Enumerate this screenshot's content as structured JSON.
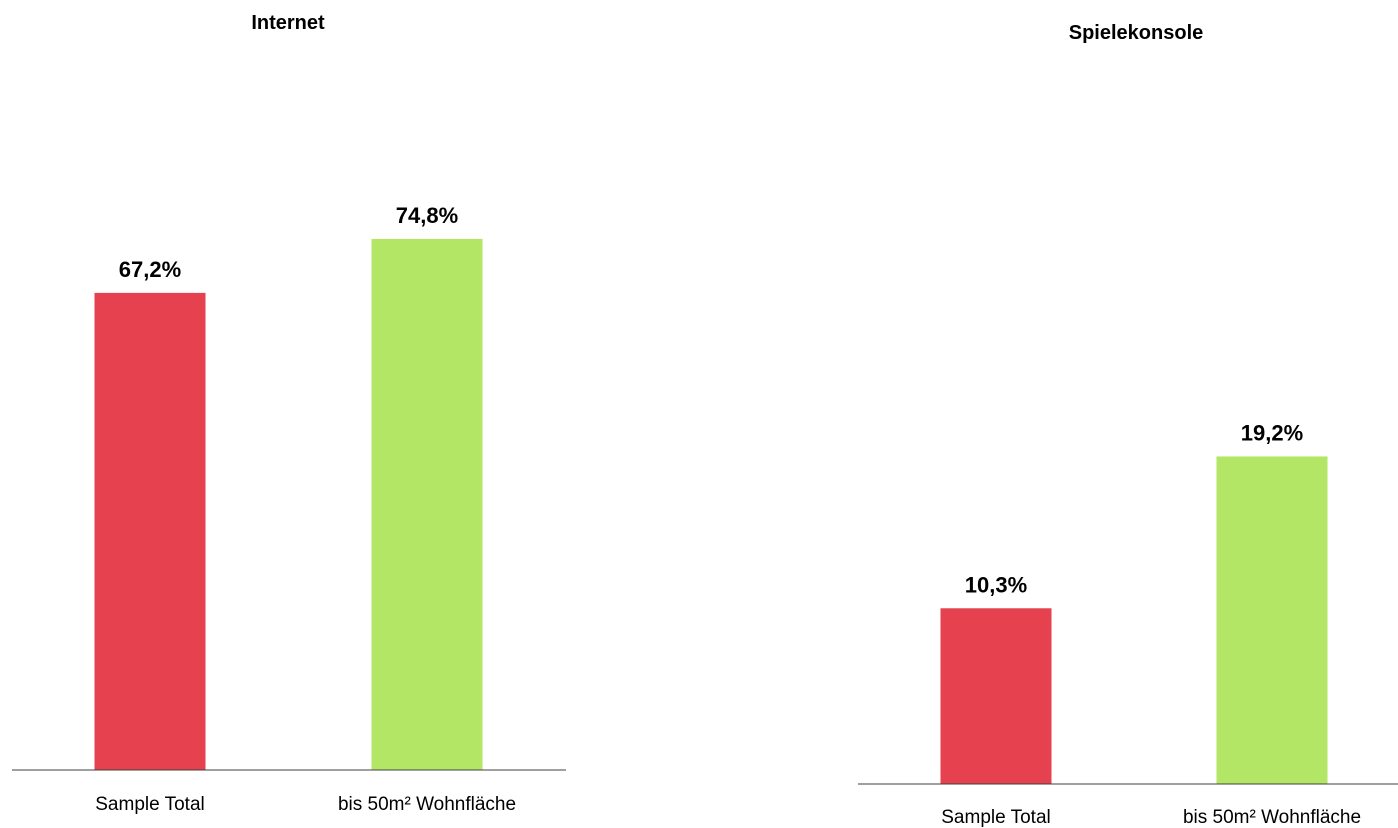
{
  "colors": {
    "sample_total": "#e5414f",
    "bis_50m2": "#b3e665",
    "axis": "#404040"
  },
  "chart_data": [
    {
      "type": "bar",
      "title": "Internet",
      "categories": [
        "Sample Total",
        "bis 50m² Wohnfläche"
      ],
      "values": [
        67.2,
        74.8
      ],
      "value_labels": [
        "67,2%",
        "74,8%"
      ],
      "unit": "%",
      "ylim": [
        0,
        100
      ],
      "grid": false,
      "legend": "none"
    },
    {
      "type": "bar",
      "title": "Spielekonsole",
      "categories": [
        "Sample Total",
        "bis 50m² Wohnfläche"
      ],
      "values": [
        10.3,
        19.2
      ],
      "value_labels": [
        "10,3%",
        "19,2%"
      ],
      "unit": "%",
      "ylim": [
        0,
        30
      ],
      "grid": false,
      "legend": "none"
    }
  ]
}
